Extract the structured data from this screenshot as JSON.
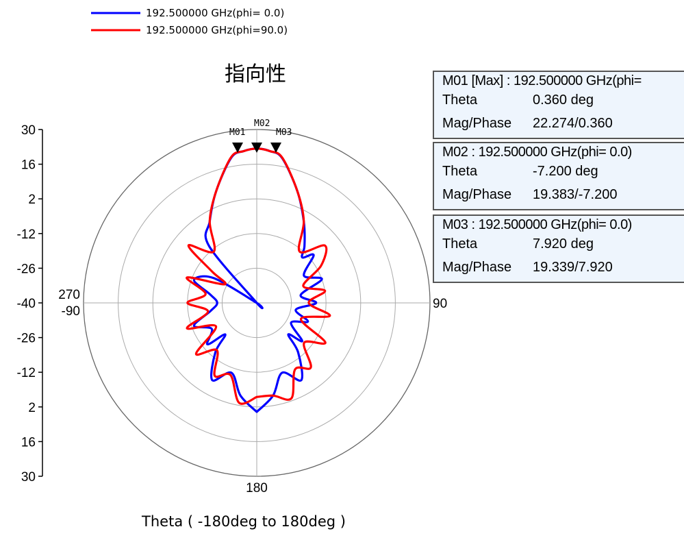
{
  "chart_data": {
    "type": "polar-line",
    "title": "指向性",
    "xlabel": "Theta ( -180deg to 180deg )",
    "angle_labels": {
      "top": "",
      "right": "90",
      "bottom": "180",
      "left_1": "270",
      "left_2": "-90"
    },
    "r_axis": {
      "ticks": [
        "30",
        "16",
        "2",
        "-12",
        "-26",
        "-40",
        "-26",
        "-12",
        "2",
        "16",
        "30"
      ],
      "range": [
        -40,
        30
      ],
      "rings": [
        30,
        16,
        2,
        -12,
        -26
      ]
    },
    "grid": true,
    "legend_position": "top-left",
    "series": [
      {
        "name": "192.500000 GHz(phi= 0.0)",
        "color": "#0000ff",
        "theta_deg": [
          -180,
          -170,
          -160,
          -150,
          -140,
          -135,
          -130,
          -120,
          -110,
          -100,
          -90,
          -80,
          -70,
          -60,
          -50,
          -45,
          -40,
          -30,
          -20,
          -10,
          -5,
          0,
          5,
          10,
          20,
          30,
          40,
          45,
          50,
          60,
          70,
          80,
          90,
          100,
          110,
          120,
          130,
          135,
          140,
          150,
          160,
          170,
          180
        ],
        "mag_db": [
          4,
          -2,
          -10,
          -4,
          -14,
          -22,
          -14,
          -19,
          -13,
          -21,
          -24,
          -21,
          -13,
          -20,
          -40,
          -40,
          -10,
          -2,
          8,
          19.5,
          21.5,
          22.3,
          21.5,
          19.3,
          8,
          -2,
          -10,
          -14,
          -10,
          -18,
          -12,
          -22,
          -16,
          -24,
          -18,
          -24,
          -16,
          -22,
          -14,
          -4,
          -10,
          -2,
          4
        ]
      },
      {
        "name": "192.500000 GHz(phi=90.0)",
        "color": "#ff0000",
        "theta_deg": [
          -180,
          -170,
          -160,
          -150,
          -140,
          -130,
          -120,
          -110,
          -100,
          -90,
          -80,
          -70,
          -60,
          -55,
          -50,
          -40,
          -30,
          -20,
          -10,
          -5,
          0,
          5,
          10,
          20,
          30,
          40,
          50,
          60,
          70,
          80,
          90,
          100,
          110,
          120,
          130,
          140,
          150,
          160,
          170,
          180
        ],
        "mag_db": [
          -2,
          1,
          -9,
          -6,
          -15,
          -8,
          -21,
          -10,
          -20,
          -12,
          -19,
          -10,
          -25,
          -18,
          -4,
          -13,
          -2,
          8,
          19.7,
          21.5,
          22.3,
          21.5,
          19.5,
          8,
          -2,
          -13,
          -4,
          -10,
          -20,
          -12,
          -19,
          -10,
          -21,
          -8,
          -15,
          -6,
          -9,
          1,
          -2,
          -2
        ]
      }
    ],
    "markers": [
      {
        "name": "M01",
        "theta_deg": 0.36,
        "series": 0
      },
      {
        "name": "M02",
        "theta_deg": -7.2,
        "series": 0
      },
      {
        "name": "M03",
        "theta_deg": 7.92,
        "series": 0
      }
    ]
  },
  "marker_boxes": [
    {
      "header": "M01 [Max] : 192.500000 GHz(phi=",
      "theta_label": "Theta",
      "theta_value": "0.360  deg",
      "mag_label": "Mag/Phase",
      "mag_value": "22.274/0.360"
    },
    {
      "header": "M02 : 192.500000 GHz(phi= 0.0)",
      "theta_label": "Theta",
      "theta_value": "-7.200  deg",
      "mag_label": "Mag/Phase",
      "mag_value": "19.383/-7.200"
    },
    {
      "header": "M03 : 192.500000 GHz(phi= 0.0)",
      "theta_label": "Theta",
      "theta_value": "7.920  deg",
      "mag_label": "Mag/Phase",
      "mag_value": "19.339/7.920"
    }
  ]
}
